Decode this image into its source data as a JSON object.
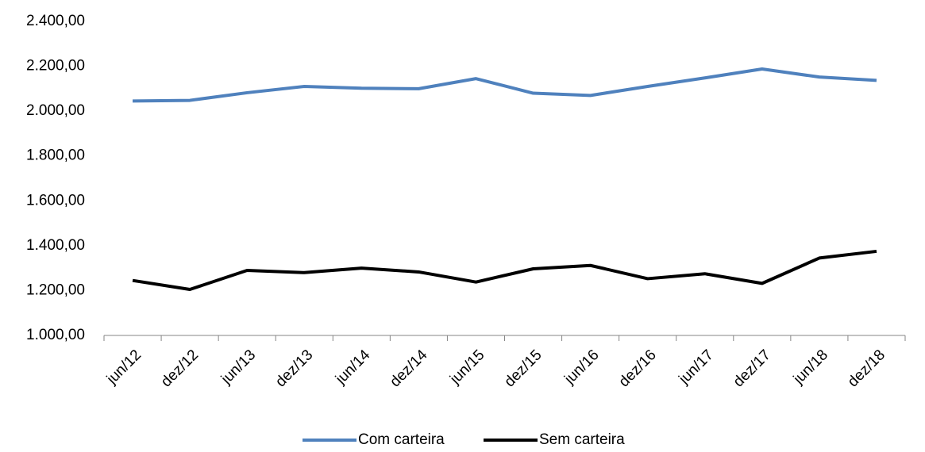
{
  "chart_data": {
    "type": "line",
    "categories": [
      "jun/12",
      "dez/12",
      "jun/13",
      "dez/13",
      "jun/14",
      "dez/14",
      "jun/15",
      "dez/15",
      "jun/16",
      "dez/16",
      "jun/17",
      "dez/17",
      "jun/18",
      "dez/18"
    ],
    "series": [
      {
        "name": "Com carteira",
        "color": "#4f81bd",
        "values": [
          2045,
          2048,
          2082,
          2110,
          2102,
          2100,
          2145,
          2080,
          2070,
          2110,
          2148,
          2188,
          2152,
          2137
        ]
      },
      {
        "name": "Sem carteira",
        "color": "#000000",
        "values": [
          1245,
          1205,
          1290,
          1280,
          1300,
          1283,
          1238,
          1297,
          1312,
          1253,
          1275,
          1232,
          1345,
          1375
        ]
      }
    ],
    "ylim": [
      1000,
      2400
    ],
    "yticks": [
      {
        "value": 1000,
        "label": "1.000,00"
      },
      {
        "value": 1200,
        "label": "1.200,00"
      },
      {
        "value": 1400,
        "label": "1.400,00"
      },
      {
        "value": 1600,
        "label": "1.600,00"
      },
      {
        "value": 1800,
        "label": "1.800,00"
      },
      {
        "value": 2000,
        "label": "2.000,00"
      },
      {
        "value": 2200,
        "label": "2.200,00"
      },
      {
        "value": 2400,
        "label": "2.400,00"
      }
    ],
    "grid": false,
    "legend": "bottom"
  }
}
